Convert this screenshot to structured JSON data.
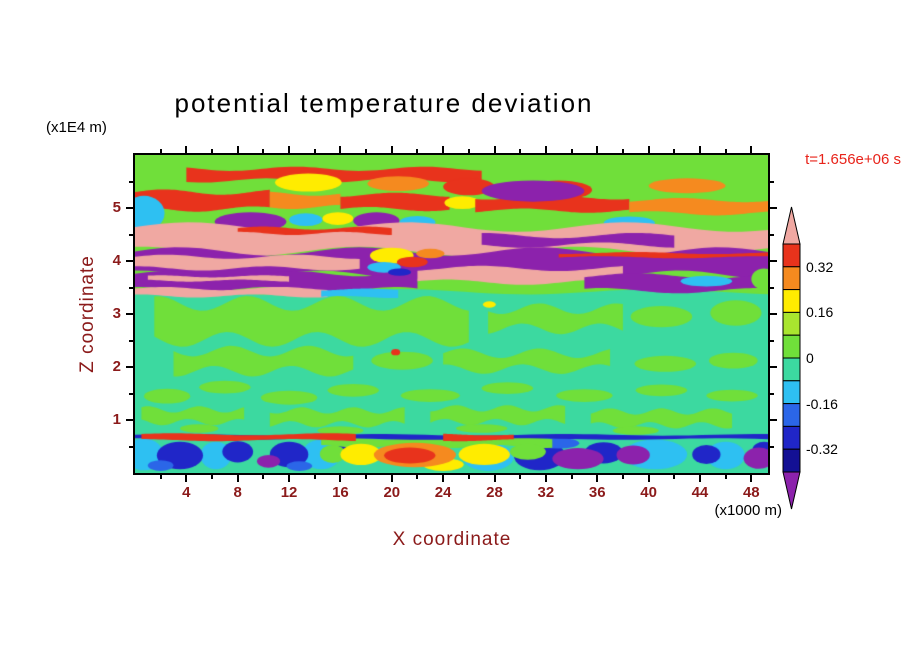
{
  "title": "potential temperature deviation",
  "annotations": {
    "time": "t=1.656e+06 s",
    "z_unit": "(x1E4 m)",
    "x_unit": "(x1000 m)"
  },
  "colors": {
    "axis_text": "#8b1a1a",
    "time_text": "#e8231a",
    "frame": "#000000",
    "background": "#ffffff"
  },
  "x_axis": {
    "label": "X coordinate",
    "range": [
      0,
      49.3
    ],
    "major_ticks": [
      4,
      8,
      12,
      16,
      20,
      24,
      28,
      32,
      36,
      40,
      44,
      48
    ],
    "minor_ticks": [
      2,
      6,
      10,
      14,
      18,
      22,
      26,
      30,
      34,
      38,
      42,
      46
    ]
  },
  "z_axis": {
    "label": "Z coordinate",
    "range": [
      0,
      6
    ],
    "major_ticks": [
      1,
      2,
      3,
      4,
      5
    ],
    "minor_ticks": [
      0.5,
      1.5,
      2.5,
      3.5,
      4.5,
      5.5
    ]
  },
  "colorbar": {
    "labels": [
      "0.32",
      "0.16",
      "0",
      "-0.16",
      "-0.32"
    ],
    "segment_colors": [
      "#e8331c",
      "#f58a1f",
      "#ffec00",
      "#a9e52f",
      "#70df3a",
      "#3cd9a0",
      "#2ec0f2",
      "#2b66e8",
      "#2026c8",
      "#131094"
    ],
    "over_color": "#f0a8a2",
    "under_color": "#8c22ac"
  },
  "chart_data": {
    "type": "heatmap",
    "title": "potential temperature deviation",
    "xlabel": "X coordinate (x1000 m)",
    "ylabel": "Z coordinate (x1E4 m)",
    "time": "t=1.656e+06 s",
    "x_range": [
      0,
      49.3
    ],
    "z_range": [
      0,
      6
    ],
    "contour_levels": [
      -0.4,
      -0.32,
      -0.24,
      -0.16,
      -0.08,
      0,
      0.08,
      0.16,
      0.24,
      0.32,
      0.4
    ],
    "palette": {
      "pink": "#f0a8a2",
      "red": "#e8331c",
      "orange": "#f58a1f",
      "yellow": "#ffec00",
      "ygreen": "#a9e52f",
      "ltgreen": "#70df3a",
      "teal": "#3cd9a0",
      "cyan": "#2ec0f2",
      "blue": "#2b66e8",
      "navy": "#2026c8",
      "deepnavy": "#131094",
      "purple": "#8c22ac"
    },
    "background_level": "teal",
    "shapes": [
      {
        "t": "b",
        "c": "ltgreen",
        "x": [
          0,
          49.3
        ],
        "z": [
          3.42,
          6.1
        ],
        "a": 0.05,
        "l": 20
      },
      {
        "t": "b",
        "c": "red",
        "x": [
          4,
          27
        ],
        "z": [
          5.52,
          5.74
        ],
        "a": 0.04,
        "l": 10
      },
      {
        "t": "e",
        "c": "yellow",
        "e": [
          13.5,
          5.48,
          2.6,
          0.17
        ]
      },
      {
        "t": "e",
        "c": "orange",
        "e": [
          20.5,
          5.46,
          2.4,
          0.14
        ]
      },
      {
        "t": "e",
        "c": "red",
        "e": [
          26,
          5.4,
          2,
          0.16
        ]
      },
      {
        "t": "e",
        "c": "orange",
        "e": [
          43,
          5.42,
          3,
          0.14
        ]
      },
      {
        "t": "e",
        "c": "red",
        "e": [
          33,
          5.34,
          2.6,
          0.18
        ]
      },
      {
        "t": "b",
        "c": "red",
        "x": [
          0,
          10.5
        ],
        "z": [
          4.98,
          5.3
        ],
        "a": 0.05,
        "l": 9
      },
      {
        "t": "b",
        "c": "orange",
        "x": [
          10.5,
          16
        ],
        "z": [
          5.02,
          5.27
        ],
        "a": 0.04,
        "l": 8
      },
      {
        "t": "b",
        "c": "red",
        "x": [
          16,
          24.5
        ],
        "z": [
          4.98,
          5.25
        ],
        "a": 0.04,
        "l": 9
      },
      {
        "t": "e",
        "c": "yellow",
        "e": [
          25.5,
          5.1,
          1.4,
          0.12
        ]
      },
      {
        "t": "b",
        "c": "red",
        "x": [
          26.5,
          38.5
        ],
        "z": [
          4.95,
          5.2
        ],
        "a": 0.04,
        "l": 10
      },
      {
        "t": "b",
        "c": "orange",
        "x": [
          38.5,
          49.3
        ],
        "z": [
          4.9,
          5.15
        ],
        "a": 0.04,
        "l": 10
      },
      {
        "t": "e",
        "c": "purple",
        "e": [
          31,
          5.32,
          4,
          0.2
        ]
      },
      {
        "t": "e",
        "c": "cyan",
        "e": [
          0.7,
          4.9,
          1.6,
          0.33
        ]
      },
      {
        "t": "e",
        "c": "purple",
        "e": [
          9,
          4.74,
          2.8,
          0.18
        ]
      },
      {
        "t": "e",
        "c": "cyan",
        "e": [
          13.3,
          4.78,
          1.3,
          0.12
        ]
      },
      {
        "t": "e",
        "c": "yellow",
        "e": [
          15.8,
          4.8,
          1.2,
          0.12
        ]
      },
      {
        "t": "e",
        "c": "purple",
        "e": [
          18.8,
          4.76,
          1.8,
          0.16
        ]
      },
      {
        "t": "e",
        "c": "cyan",
        "e": [
          22,
          4.73,
          1.4,
          0.12
        ]
      },
      {
        "t": "e",
        "c": "cyan",
        "e": [
          38.5,
          4.72,
          2,
          0.12
        ]
      },
      {
        "t": "b",
        "c": "pink",
        "x": [
          0,
          49.3
        ],
        "z": [
          4.18,
          4.64
        ],
        "a": 0.09,
        "l": 17
      },
      {
        "t": "b",
        "c": "red",
        "x": [
          8,
          20
        ],
        "z": [
          4.52,
          4.62
        ],
        "a": 0.03,
        "l": 8
      },
      {
        "t": "b",
        "c": "purple",
        "x": [
          27,
          42
        ],
        "z": [
          4.3,
          4.48
        ],
        "a": 0.05,
        "l": 12
      },
      {
        "t": "b",
        "c": "purple",
        "x": [
          0,
          49.3
        ],
        "z": [
          3.74,
          4.18
        ],
        "a": 0.08,
        "l": 14
      },
      {
        "t": "b",
        "c": "pink",
        "x": [
          0,
          17.5
        ],
        "z": [
          3.86,
          4.08
        ],
        "a": 0.04,
        "l": 10
      },
      {
        "t": "b",
        "c": "red",
        "x": [
          33,
          49.3
        ],
        "z": [
          4.07,
          4.15
        ],
        "a": 0.02,
        "l": 12
      },
      {
        "t": "b",
        "c": "purple",
        "x": [
          0,
          22
        ],
        "z": [
          3.46,
          3.76
        ],
        "a": 0.05,
        "l": 10
      },
      {
        "t": "b",
        "c": "pink",
        "x": [
          1,
          12
        ],
        "z": [
          3.63,
          3.71
        ],
        "a": 0.02,
        "l": 8
      },
      {
        "t": "b",
        "c": "pink",
        "x": [
          22,
          38
        ],
        "z": [
          3.6,
          3.86
        ],
        "a": 0.05,
        "l": 12
      },
      {
        "t": "b",
        "c": "purple",
        "x": [
          35,
          49.3
        ],
        "z": [
          3.44,
          3.72
        ],
        "a": 0.05,
        "l": 12
      },
      {
        "t": "e",
        "c": "cyan",
        "e": [
          44.5,
          3.62,
          2,
          0.1
        ]
      },
      {
        "t": "e",
        "c": "ltgreen",
        "e": [
          49,
          3.66,
          1,
          0.2
        ]
      },
      {
        "t": "e",
        "c": "yellow",
        "e": [
          20,
          4.1,
          1.7,
          0.15
        ]
      },
      {
        "t": "e",
        "c": "red",
        "e": [
          21.6,
          3.98,
          1.2,
          0.1
        ]
      },
      {
        "t": "e",
        "c": "cyan",
        "e": [
          19.4,
          3.88,
          1.3,
          0.1
        ]
      },
      {
        "t": "e",
        "c": "navy",
        "e": [
          20.6,
          3.79,
          0.9,
          0.07
        ]
      },
      {
        "t": "e",
        "c": "orange",
        "e": [
          23,
          4.14,
          1.1,
          0.09
        ]
      },
      {
        "t": "b",
        "c": "pink",
        "x": [
          0,
          15
        ],
        "z": [
          3.34,
          3.48
        ],
        "a": 0.03,
        "l": 9
      },
      {
        "t": "b",
        "c": "cyan",
        "x": [
          14.5,
          20.5
        ],
        "z": [
          3.32,
          3.46
        ],
        "a": 0.02,
        "l": 8
      },
      {
        "t": "b",
        "c": "ltgreen",
        "x": [
          1.5,
          26
        ],
        "z": [
          2.52,
          3.2
        ],
        "a": 0.14,
        "l": 7
      },
      {
        "t": "b",
        "c": "ltgreen",
        "x": [
          27.5,
          38
        ],
        "z": [
          2.72,
          3.1
        ],
        "a": 0.1,
        "l": 6
      },
      {
        "t": "e",
        "c": "ltgreen",
        "e": [
          41,
          2.95,
          2.4,
          0.2
        ]
      },
      {
        "t": "e",
        "c": "ltgreen",
        "e": [
          46.8,
          3.02,
          2,
          0.24
        ]
      },
      {
        "t": "e",
        "c": "yellow",
        "e": [
          27.6,
          3.18,
          0.5,
          0.06
        ]
      },
      {
        "t": "b",
        "c": "ltgreen",
        "x": [
          3,
          17
        ],
        "z": [
          1.92,
          2.3
        ],
        "a": 0.1,
        "l": 6
      },
      {
        "t": "e",
        "c": "ltgreen",
        "e": [
          20.8,
          2.12,
          2.4,
          0.17
        ]
      },
      {
        "t": "b",
        "c": "ltgreen",
        "x": [
          24,
          37
        ],
        "z": [
          1.96,
          2.26
        ],
        "a": 0.09,
        "l": 6
      },
      {
        "t": "e",
        "c": "ltgreen",
        "e": [
          41.3,
          2.06,
          2.4,
          0.15
        ]
      },
      {
        "t": "e",
        "c": "ltgreen",
        "e": [
          46.6,
          2.12,
          1.9,
          0.15
        ]
      },
      {
        "t": "e",
        "c": "red",
        "e": [
          20.3,
          2.28,
          0.35,
          0.06
        ]
      },
      {
        "t": "e",
        "c": "ltgreen",
        "e": [
          2.5,
          1.45,
          1.8,
          0.14
        ]
      },
      {
        "t": "e",
        "c": "ltgreen",
        "e": [
          7,
          1.62,
          2,
          0.12
        ]
      },
      {
        "t": "e",
        "c": "ltgreen",
        "e": [
          12,
          1.42,
          2.2,
          0.13
        ]
      },
      {
        "t": "e",
        "c": "ltgreen",
        "e": [
          17,
          1.56,
          2,
          0.12
        ]
      },
      {
        "t": "e",
        "c": "ltgreen",
        "e": [
          23,
          1.46,
          2.3,
          0.12
        ]
      },
      {
        "t": "e",
        "c": "ltgreen",
        "e": [
          29,
          1.6,
          2,
          0.11
        ]
      },
      {
        "t": "e",
        "c": "ltgreen",
        "e": [
          35,
          1.46,
          2.2,
          0.12
        ]
      },
      {
        "t": "e",
        "c": "ltgreen",
        "e": [
          41,
          1.56,
          2,
          0.11
        ]
      },
      {
        "t": "e",
        "c": "ltgreen",
        "e": [
          46.5,
          1.46,
          2,
          0.11
        ]
      },
      {
        "t": "b",
        "c": "ltgreen",
        "x": [
          0.5,
          8.5
        ],
        "z": [
          0.96,
          1.2
        ],
        "a": 0.06,
        "l": 4
      },
      {
        "t": "b",
        "c": "ltgreen",
        "x": [
          10.5,
          21
        ],
        "z": [
          0.92,
          1.18
        ],
        "a": 0.06,
        "l": 4
      },
      {
        "t": "b",
        "c": "ltgreen",
        "x": [
          23,
          33.5
        ],
        "z": [
          0.96,
          1.22
        ],
        "a": 0.06,
        "l": 4
      },
      {
        "t": "b",
        "c": "ltgreen",
        "x": [
          35.5,
          46.5
        ],
        "z": [
          0.9,
          1.16
        ],
        "a": 0.06,
        "l": 4
      },
      {
        "t": "e",
        "c": "ltgreen",
        "e": [
          5,
          0.84,
          1.5,
          0.08
        ]
      },
      {
        "t": "e",
        "c": "ltgreen",
        "e": [
          16,
          0.8,
          1.8,
          0.08
        ]
      },
      {
        "t": "e",
        "c": "ltgreen",
        "e": [
          27,
          0.84,
          2,
          0.08
        ]
      },
      {
        "t": "e",
        "c": "ltgreen",
        "e": [
          39,
          0.8,
          1.8,
          0.08
        ]
      },
      {
        "t": "e",
        "c": "cyan",
        "e": [
          0.7,
          0.35,
          1.5,
          0.3
        ]
      },
      {
        "t": "e",
        "c": "cyan",
        "e": [
          6.3,
          0.33,
          1.2,
          0.26
        ]
      },
      {
        "t": "e",
        "c": "cyan",
        "e": [
          14.5,
          0.35,
          1.5,
          0.28
        ]
      },
      {
        "t": "e",
        "c": "cyan",
        "e": [
          27.5,
          0.3,
          2,
          0.26
        ]
      },
      {
        "t": "e",
        "c": "cyan",
        "e": [
          40.5,
          0.35,
          2.5,
          0.28
        ]
      },
      {
        "t": "e",
        "c": "cyan",
        "e": [
          46,
          0.33,
          1.5,
          0.26
        ]
      },
      {
        "t": "e",
        "c": "navy",
        "e": [
          3.5,
          0.33,
          1.8,
          0.26
        ]
      },
      {
        "t": "e",
        "c": "navy",
        "e": [
          8,
          0.4,
          1.2,
          0.2
        ]
      },
      {
        "t": "e",
        "c": "navy",
        "e": [
          12,
          0.35,
          1.5,
          0.24
        ]
      },
      {
        "t": "e",
        "c": "navy",
        "e": [
          16.6,
          0.42,
          0.9,
          0.16
        ]
      },
      {
        "t": "e",
        "c": "navy",
        "e": [
          31.5,
          0.33,
          2,
          0.28
        ]
      },
      {
        "t": "e",
        "c": "navy",
        "e": [
          36.5,
          0.38,
          1.5,
          0.2
        ]
      },
      {
        "t": "e",
        "c": "navy",
        "e": [
          44.5,
          0.35,
          1.1,
          0.18
        ]
      },
      {
        "t": "e",
        "c": "navy",
        "e": [
          49,
          0.45,
          0.9,
          0.14
        ]
      },
      {
        "t": "e",
        "c": "purple",
        "e": [
          34.5,
          0.27,
          2,
          0.2
        ]
      },
      {
        "t": "e",
        "c": "purple",
        "e": [
          38.8,
          0.34,
          1.3,
          0.18
        ]
      },
      {
        "t": "e",
        "c": "purple",
        "e": [
          48.6,
          0.28,
          1.2,
          0.2
        ]
      },
      {
        "t": "e",
        "c": "purple",
        "e": [
          10.4,
          0.22,
          0.9,
          0.12
        ]
      },
      {
        "t": "e",
        "c": "blue",
        "e": [
          2,
          0.14,
          1,
          0.1
        ]
      },
      {
        "t": "e",
        "c": "blue",
        "e": [
          12.8,
          0.13,
          1,
          0.09
        ]
      },
      {
        "t": "e",
        "c": "blue",
        "e": [
          33,
          0.56,
          1.6,
          0.1
        ]
      },
      {
        "t": "b",
        "c": "ltgreen",
        "x": [
          14.5,
          32.5
        ],
        "z": [
          0.5,
          0.66
        ],
        "a": 0.03,
        "l": 7
      },
      {
        "t": "e",
        "c": "ltgreen",
        "e": [
          15.4,
          0.36,
          1,
          0.17
        ]
      },
      {
        "t": "e",
        "c": "ltgreen",
        "e": [
          30.6,
          0.4,
          1.4,
          0.15
        ]
      },
      {
        "t": "e",
        "c": "yellow",
        "e": [
          17.6,
          0.35,
          1.6,
          0.2
        ]
      },
      {
        "t": "e",
        "c": "yellow",
        "e": [
          27.2,
          0.35,
          2,
          0.2
        ]
      },
      {
        "t": "e",
        "c": "yellow",
        "e": [
          24,
          0.16,
          1.6,
          0.12
        ]
      },
      {
        "t": "e",
        "c": "orange",
        "e": [
          21.8,
          0.34,
          3.2,
          0.23
        ]
      },
      {
        "t": "e",
        "c": "red",
        "e": [
          21.4,
          0.33,
          2,
          0.15
        ]
      },
      {
        "t": "b",
        "c": "navy",
        "x": [
          0,
          49.3
        ],
        "z": [
          0.64,
          0.72
        ],
        "a": 0.015,
        "l": 15
      },
      {
        "t": "b",
        "c": "red",
        "x": [
          0.5,
          17.2
        ],
        "z": [
          0.62,
          0.73
        ],
        "a": 0.02,
        "l": 12
      },
      {
        "t": "b",
        "c": "red",
        "x": [
          24,
          29.5
        ],
        "z": [
          0.62,
          0.73
        ],
        "a": 0.02,
        "l": 10
      }
    ]
  }
}
